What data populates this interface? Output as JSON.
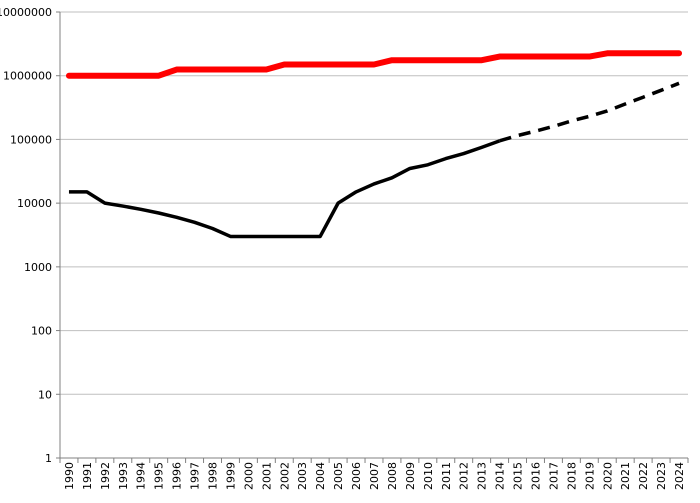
{
  "chart_data": {
    "type": "line",
    "title": "",
    "xlabel": "",
    "ylabel": "",
    "y_scale": "log",
    "ylim": [
      1,
      10000000
    ],
    "y_ticks": [
      {
        "value": 1,
        "label": "1"
      },
      {
        "value": 10,
        "label": "10"
      },
      {
        "value": 100,
        "label": "100"
      },
      {
        "value": 1000,
        "label": "1000"
      },
      {
        "value": 10000,
        "label": "10000"
      },
      {
        "value": 100000,
        "label": "100000"
      },
      {
        "value": 1000000,
        "label": "1000000"
      },
      {
        "value": 10000000,
        "label": "10000000"
      }
    ],
    "grid": "horizontal",
    "legend": "none",
    "categories": [
      "1990",
      "1991",
      "1992",
      "1993",
      "1994",
      "1995",
      "1996",
      "1997",
      "1998",
      "1999",
      "2000",
      "2001",
      "2002",
      "2003",
      "2004",
      "2005",
      "2006",
      "2007",
      "2008",
      "2009",
      "2010",
      "2011",
      "2012",
      "2013",
      "2014",
      "2015",
      "2016",
      "2017",
      "2018",
      "2019",
      "2020",
      "2021",
      "2022",
      "2023",
      "2024"
    ],
    "series": [
      {
        "color": "#ff0000",
        "style": "solid",
        "values": [
          1000000,
          1000000,
          1000000,
          1000000,
          1000000,
          1000000,
          1250000,
          1250000,
          1250000,
          1250000,
          1250000,
          1250000,
          1500000,
          1500000,
          1500000,
          1500000,
          1500000,
          1500000,
          1750000,
          1750000,
          1750000,
          1750000,
          1750000,
          1750000,
          2000000,
          2000000,
          2000000,
          2000000,
          2000000,
          2000000,
          2250000,
          2250000,
          2250000,
          2250000,
          2250000
        ]
      },
      {
        "color": "#000000",
        "style": "solid",
        "values": [
          15000,
          15000,
          10000,
          9000,
          8000,
          7000,
          6000,
          5000,
          4000,
          3000,
          3000,
          3000,
          3000,
          3000,
          3000,
          10000,
          15000,
          20000,
          25000,
          35000,
          40000,
          50000,
          60000,
          75000,
          95000,
          null,
          null,
          null,
          null,
          null,
          null,
          null,
          null,
          null,
          null
        ]
      },
      {
        "color": "#000000",
        "style": "dashed",
        "values": [
          null,
          null,
          null,
          null,
          null,
          null,
          null,
          null,
          null,
          null,
          null,
          null,
          null,
          null,
          null,
          null,
          null,
          null,
          null,
          null,
          null,
          null,
          null,
          null,
          95000,
          115000,
          135000,
          160000,
          195000,
          230000,
          280000,
          360000,
          460000,
          590000,
          760000
        ]
      }
    ]
  }
}
